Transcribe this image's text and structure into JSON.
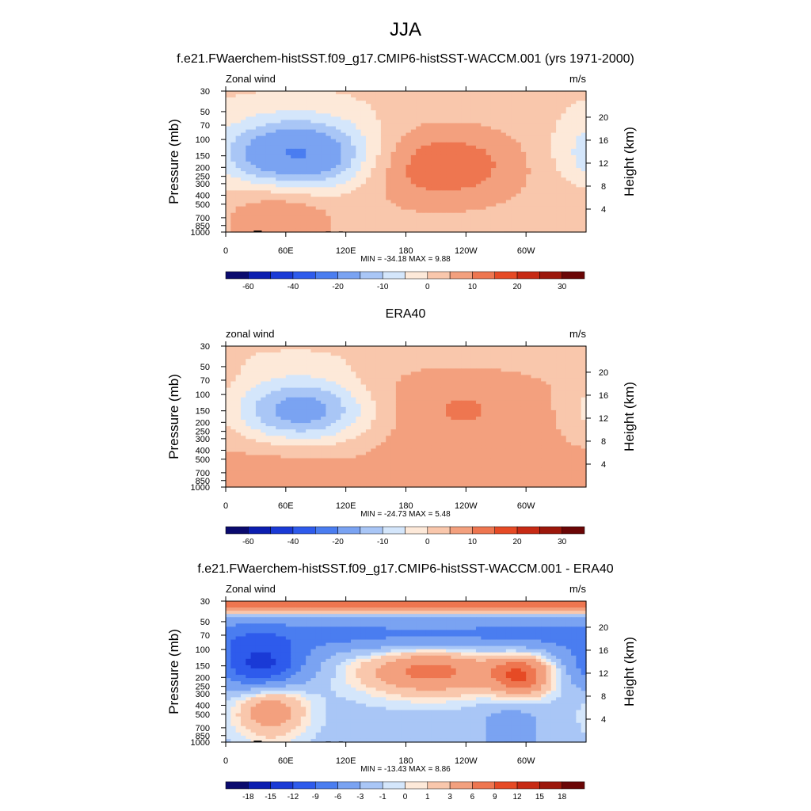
{
  "figure": {
    "main_title": "JJA",
    "y_left_label": "Pressure (mb)",
    "y_right_label": "Height (km)",
    "units": "m/s"
  },
  "chart_data": [
    {
      "type": "heatmap",
      "title": "f.e21.FWaerchem-histSST.f09_g17.CMIP6-histSST-WACCM.001 (yrs 1971-2000)",
      "left_label": "Zonal wind",
      "right_label": "m/s",
      "xlabel": "",
      "x_ticks": [
        "0",
        "60E",
        "120E",
        "180",
        "120W",
        "60W"
      ],
      "y_ticks": [
        "30",
        "50",
        "70",
        "100",
        "150",
        "200",
        "250",
        "300",
        "400",
        "500",
        "700",
        "850",
        "1000"
      ],
      "y_right_ticks": [
        "20",
        "16",
        "12",
        "8",
        "4"
      ],
      "min_max_text": "MIN = -34.18  MAX =   9.88",
      "min": -34.18,
      "max": 9.88,
      "colorbar_labels": [
        "-60",
        "-40",
        "-20",
        "-10",
        "0",
        "10",
        "20",
        "30"
      ],
      "features": [
        {
          "kind": "jet",
          "lon": 72,
          "p": 150,
          "value": -34,
          "lon_halfwidth": 75,
          "p_spread": 0.9
        },
        {
          "kind": "jet",
          "lon": 210,
          "p": 190,
          "value": 9.5,
          "lon_halfwidth": 90,
          "p_spread": 1.0
        },
        {
          "kind": "jet",
          "lon": 55,
          "p": 550,
          "value": 6,
          "lon_halfwidth": 55,
          "p_spread": 1.2
        },
        {
          "kind": "band",
          "p": 35,
          "value": -4,
          "p_spread": 0.8
        }
      ],
      "background": -3
    },
    {
      "type": "heatmap",
      "title": "ERA40",
      "left_label": "zonal wind",
      "right_label": "m/s",
      "xlabel": "",
      "x_ticks": [
        "0",
        "60E",
        "120E",
        "180",
        "120W",
        "60W"
      ],
      "y_ticks": [
        "30",
        "50",
        "70",
        "100",
        "150",
        "200",
        "250",
        "300",
        "400",
        "500",
        "700",
        "850",
        "1000"
      ],
      "y_right_ticks": [
        "20",
        "16",
        "12",
        "8",
        "4"
      ],
      "min_max_text": "MIN = -24.73  MAX =   5.48",
      "min": -24.73,
      "max": 5.48,
      "colorbar_labels": [
        "-60",
        "-40",
        "-20",
        "-10",
        "0",
        "10",
        "20",
        "30"
      ],
      "features": [
        {
          "kind": "jet",
          "lon": 75,
          "p": 150,
          "value": -24,
          "lon_halfwidth": 70,
          "p_spread": 0.85
        },
        {
          "kind": "jet",
          "lon": 230,
          "p": 130,
          "value": 5.5,
          "lon_halfwidth": 90,
          "p_spread": 1.4
        },
        {
          "kind": "jet",
          "lon": 60,
          "p": 650,
          "value": 4,
          "lon_halfwidth": 60,
          "p_spread": 1.1
        },
        {
          "kind": "band",
          "p": 35,
          "value": -4,
          "p_spread": 0.7
        }
      ],
      "background": 1
    },
    {
      "type": "heatmap",
      "title": "f.e21.FWaerchem-histSST.f09_g17.CMIP6-histSST-WACCM.001 - ERA40",
      "left_label": "Zonal wind",
      "right_label": "m/s",
      "xlabel": "",
      "x_ticks": [
        "0",
        "60E",
        "120E",
        "180",
        "120W",
        "60W"
      ],
      "y_ticks": [
        "30",
        "50",
        "70",
        "100",
        "150",
        "200",
        "250",
        "300",
        "400",
        "500",
        "700",
        "850",
        "1000"
      ],
      "y_right_ticks": [
        "20",
        "16",
        "12",
        "8",
        "4"
      ],
      "min_max_text": "MIN = -13.43  MAX =   8.86",
      "min": -13.43,
      "max": 8.86,
      "colorbar_labels": [
        "-18",
        "-15",
        "-12",
        "-9",
        "-6",
        "-3",
        "-1",
        "0",
        "1",
        "3",
        "6",
        "9",
        "12",
        "15",
        "18"
      ],
      "features": [
        {
          "kind": "band",
          "p": 31,
          "value": 8.5,
          "p_spread": 0.25
        },
        {
          "kind": "band",
          "p": 70,
          "value": -7,
          "p_spread": 0.45
        },
        {
          "kind": "jet",
          "lon": 35,
          "p": 150,
          "value": -13,
          "lon_halfwidth": 45,
          "p_spread": 0.6
        },
        {
          "kind": "jet",
          "lon": 205,
          "p": 170,
          "value": 7,
          "lon_halfwidth": 70,
          "p_spread": 0.6
        },
        {
          "kind": "jet",
          "lon": 295,
          "p": 190,
          "value": 8.5,
          "lon_halfwidth": 30,
          "p_spread": 0.5
        },
        {
          "kind": "jet",
          "lon": 45,
          "p": 450,
          "value": 5,
          "lon_halfwidth": 35,
          "p_spread": 0.7
        },
        {
          "kind": "jet",
          "lon": 285,
          "p": 700,
          "value": -5,
          "lon_halfwidth": 30,
          "p_spread": 0.6
        }
      ],
      "background": -1.5
    }
  ],
  "colorbars": {
    "full": {
      "colors": [
        "#0a0a6e",
        "#0c1eb0",
        "#1a3ad6",
        "#2e5bec",
        "#4a7df0",
        "#7aa3f2",
        "#a9c6f6",
        "#d4e6fb",
        "#fde9d9",
        "#f9c7ac",
        "#f3a07e",
        "#ee7650",
        "#e64a25",
        "#c72a14",
        "#9c170b",
        "#6b0606"
      ]
    },
    "diff": {
      "colors": [
        "#0a0a6e",
        "#0c1eb0",
        "#1a3ad6",
        "#2e5bec",
        "#4a7df0",
        "#7aa3f2",
        "#a9c6f6",
        "#d4e6fb",
        "#fde9d9",
        "#f9c7ac",
        "#f3a07e",
        "#ee7650",
        "#e64a25",
        "#c72a14",
        "#9c170b",
        "#6b0606"
      ]
    }
  }
}
